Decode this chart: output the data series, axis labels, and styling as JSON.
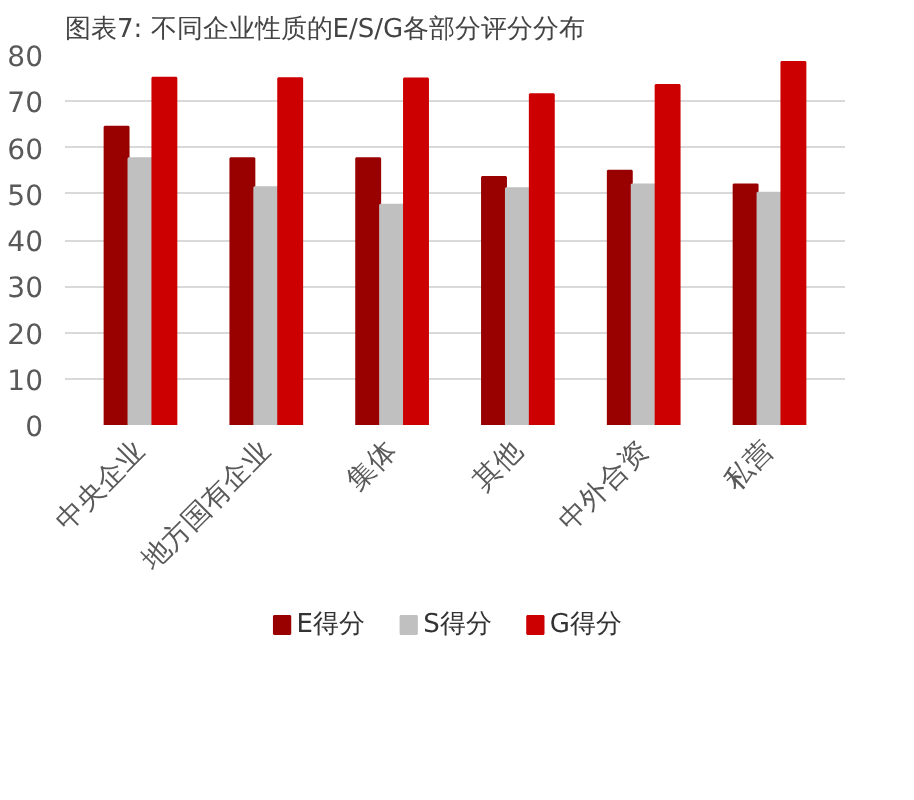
{
  "chart_data": {
    "type": "bar",
    "title": "图表7:  不同企业性质的E/S/G各部分评分分布",
    "categories": [
      "中央企业",
      "地方国有企业",
      "集体",
      "其他",
      "中外合资",
      "私营"
    ],
    "series": [
      {
        "name": "E得分",
        "color": "#990000",
        "values": [
          64.5,
          57.7,
          57.7,
          53.6,
          55,
          52
        ]
      },
      {
        "name": "S得分",
        "color": "#c0c0c0",
        "values": [
          57.7,
          51.4,
          47.6,
          51.2,
          52,
          50.2
        ]
      },
      {
        "name": "G得分",
        "color": "#cc0000",
        "values": [
          75.1,
          75,
          74.9,
          71.5,
          73.5,
          78.5
        ]
      }
    ],
    "ylim": [
      0,
      80
    ],
    "yticks": [
      0,
      10,
      20,
      30,
      40,
      50,
      60,
      70,
      80
    ],
    "grid": "y",
    "legend": "bottom"
  }
}
